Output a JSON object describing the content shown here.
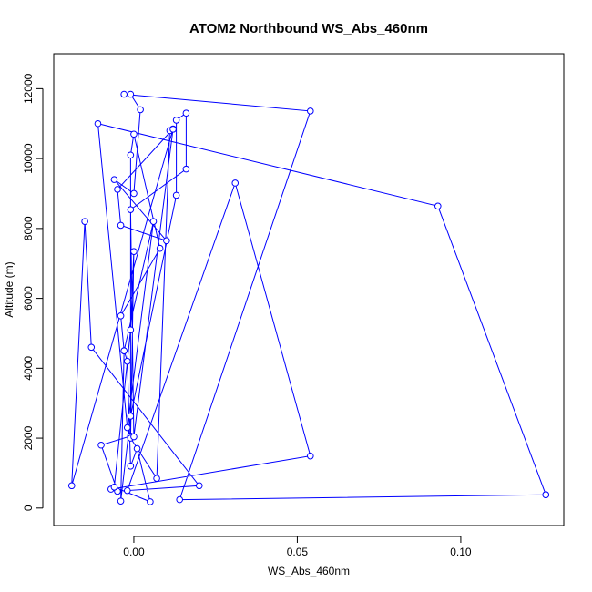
{
  "chart_data": {
    "type": "line",
    "title": "ATOM2 Northbound WS_Abs_460nm",
    "xlabel": "WS_Abs_460nm",
    "ylabel": "Altitude (m)",
    "xlim": [
      -0.0245,
      0.1315
    ],
    "ylim": [
      -500,
      13000
    ],
    "x_ticks": [
      0.0,
      0.05,
      0.1
    ],
    "x_tick_labels": [
      "0.00",
      "0.05",
      "0.10"
    ],
    "y_ticks": [
      0,
      2000,
      4000,
      6000,
      8000,
      10000,
      12000
    ],
    "y_tick_labels": [
      "0",
      "2000",
      "4000",
      "6000",
      "8000",
      "10000",
      "12000"
    ],
    "grid": false,
    "legend": "none",
    "markers": "open-circle",
    "series_color": "#0000ff",
    "series": [
      {
        "x": [
          0.126,
          0.014,
          0.054,
          -0.003,
          -0.001,
          0.002,
          0.0,
          -0.006,
          0.01,
          -0.004,
          -0.005,
          0.012,
          -0.019,
          -0.015,
          -0.013,
          0.02,
          -0.002,
          0.031,
          0.054,
          -0.007,
          -0.005,
          -0.01,
          -0.001,
          -0.001,
          0.0,
          0.008,
          -0.004,
          -0.003,
          -0.002,
          -0.001,
          0.001,
          0.005,
          -0.006,
          -0.001,
          0.0,
          -0.001,
          0.007,
          0.011,
          0.012,
          0.0,
          -0.001,
          0.016,
          0.016,
          0.013,
          0.013,
          -0.001,
          -0.004,
          -0.003,
          0.006,
          -0.002,
          -0.011,
          0.093,
          0.126
        ],
        "y": [
          380,
          240,
          11360,
          11840,
          11840,
          11400,
          9000,
          9400,
          7650,
          8090,
          9120,
          10850,
          640,
          8200,
          4600,
          640,
          500,
          9300,
          1490,
          540,
          480,
          1800,
          2060,
          10100,
          10700,
          7430,
          5500,
          4500,
          4200,
          1200,
          1700,
          180,
          600,
          5100,
          7340,
          2000,
          850,
          10800,
          10840,
          2040,
          8540,
          9700,
          11300,
          11100,
          8950,
          2630,
          200,
          4500,
          8200,
          2300,
          11000,
          8640,
          380
        ]
      }
    ]
  }
}
